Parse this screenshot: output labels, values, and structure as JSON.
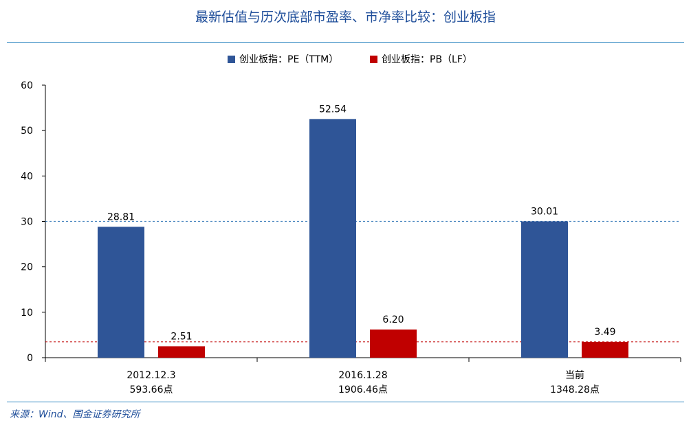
{
  "title": "最新估值与历次底部市盈率、市净率比较：创业板指",
  "source": "来源：Wind、国金证券研究所",
  "colors": {
    "pe": "#2F5597",
    "pb": "#C00000",
    "pe_ref": "#2E75B6",
    "pb_ref": "#C00000"
  },
  "chart_data": {
    "type": "bar",
    "title": "最新估值与历次底部市盈率、市净率比较：创业板指",
    "categories": [
      [
        "2012.12.3",
        "593.66点"
      ],
      [
        "2016.1.28",
        "1906.46点"
      ],
      [
        "当前",
        "1348.28点"
      ]
    ],
    "series": [
      {
        "name": "创业板指：PE（TTM）",
        "values": [
          28.81,
          52.54,
          30.01
        ],
        "labels": [
          "28.81",
          "52.54",
          "30.01"
        ]
      },
      {
        "name": "创业板指：PB（LF）",
        "values": [
          2.51,
          6.2,
          3.49
        ],
        "labels": [
          "2.51",
          "6.20",
          "3.49"
        ]
      }
    ],
    "reference_lines": [
      {
        "series": "创业板指：PE（TTM）",
        "value": 30.01,
        "style": "dashed"
      },
      {
        "series": "创业板指：PB（LF）",
        "value": 3.49,
        "style": "dashed"
      }
    ],
    "ylim": [
      0,
      60
    ],
    "yticks": [
      0,
      10,
      20,
      30,
      40,
      50,
      60
    ],
    "legend_position": "top-center",
    "grid": false
  }
}
